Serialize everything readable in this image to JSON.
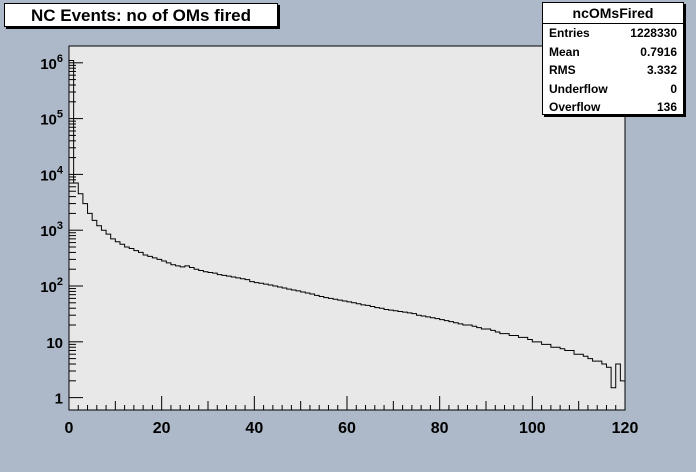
{
  "chart_data": {
    "type": "histogram",
    "title": "NC Events: no of OMs fired",
    "xlabel": "",
    "ylabel": "",
    "xlim": [
      0,
      120
    ],
    "ylim_log": [
      0.6,
      2000000
    ],
    "yscale": "log",
    "x_ticks": [
      "0",
      "20",
      "40",
      "60",
      "80",
      "100",
      "120"
    ],
    "y_ticks": [
      {
        "label": "1",
        "value": 1
      },
      {
        "label": "10",
        "value": 10
      },
      {
        "label": "10",
        "exp": "2",
        "value": 100
      },
      {
        "label": "10",
        "exp": "3",
        "value": 1000
      },
      {
        "label": "10",
        "exp": "4",
        "value": 10000
      },
      {
        "label": "10",
        "exp": "5",
        "value": 100000
      },
      {
        "label": "10",
        "exp": "6",
        "value": 1000000
      }
    ],
    "bin_width": 1,
    "bin_start": 0,
    "values": [
      1100000,
      7000,
      4500,
      3000,
      2000,
      1500,
      1200,
      1000,
      850,
      700,
      620,
      560,
      500,
      470,
      430,
      400,
      360,
      340,
      320,
      300,
      280,
      260,
      240,
      230,
      220,
      230,
      215,
      200,
      190,
      180,
      175,
      170,
      160,
      155,
      150,
      145,
      140,
      135,
      130,
      120,
      115,
      112,
      108,
      104,
      100,
      96,
      92,
      88,
      85,
      82,
      78,
      75,
      72,
      68,
      65,
      62,
      60,
      58,
      56,
      54,
      52,
      50,
      48,
      46,
      45,
      43,
      41,
      40,
      38,
      37,
      36,
      35,
      34,
      33,
      32,
      30,
      29,
      28,
      27,
      26,
      25,
      24,
      23,
      22,
      21,
      20,
      20,
      19,
      18,
      17,
      17,
      16,
      15,
      14,
      14,
      13,
      13,
      12,
      12,
      11,
      10,
      10,
      9,
      9,
      8,
      8,
      7.5,
      7,
      7,
      6,
      6,
      5.5,
      5,
      4.5,
      4.5,
      4,
      3.5,
      1.5,
      4,
      2
    ],
    "stats": {
      "name": "ncOMsFired",
      "rows": [
        {
          "label": "Entries",
          "value": "1228330"
        },
        {
          "label": "Mean",
          "value": "0.7916"
        },
        {
          "label": "RMS",
          "value": "3.332"
        },
        {
          "label": "Underflow",
          "value": "0"
        },
        {
          "label": "Overflow",
          "value": "136"
        }
      ]
    },
    "colors": {
      "frame_bg": "#adb9c9",
      "plot_bg": "#e8e8e8",
      "line": "#000000"
    }
  }
}
